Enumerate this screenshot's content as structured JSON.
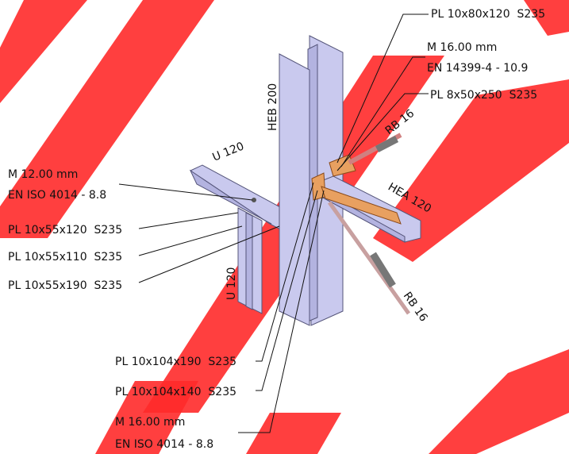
{
  "annotations": [
    "PL 10x80x120  S235",
    "M 16.00 mm",
    "EN 14399-4 - 10.9",
    "PL 8x50x250  S235",
    "RB 16",
    "HEB 200",
    "U 120",
    "HEA 120",
    "M 12.00 mm",
    "EN ISO 4014 - 8.8",
    "PL 10x55x120  S235",
    "PL 10x55x110  S235",
    "PL 10x55x190  S235",
    "U 120",
    "RB 16",
    "PL 10x104x190  S235",
    "PL 10x104x140  S235",
    "M 16.00 mm",
    "EN ISO 4014 - 8.8"
  ]
}
